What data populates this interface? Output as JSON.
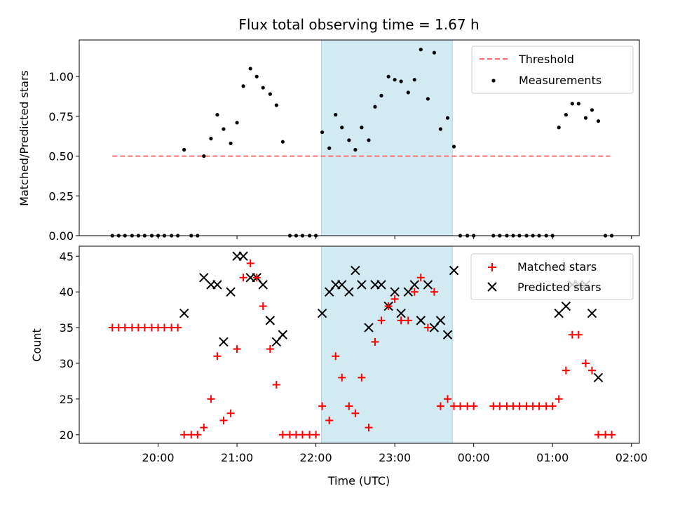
{
  "chart_data": [
    {
      "type": "scatter",
      "title": "Flux total observing time = 1.67 h",
      "xlabel": "",
      "ylabel": "Matched/Predicted stars",
      "ylim": [
        0,
        1.23
      ],
      "yticks": [
        0.0,
        0.25,
        0.5,
        0.75,
        1.0
      ],
      "ytick_labels": [
        "0.00",
        "0.25",
        "0.50",
        "0.75",
        "1.00"
      ],
      "x_unit": "hours since 00:00 UTC of first day (times after midnight > 24)",
      "xlim": [
        19.0,
        26.1
      ],
      "highlight_span": {
        "from": 22.07,
        "to": 23.73,
        "color": "#add8e6"
      },
      "legend": {
        "placement": "top-right",
        "entries": [
          "Threshold",
          "Measurements"
        ]
      },
      "threshold": {
        "name": "Threshold",
        "y": 0.5,
        "x_from": 19.42,
        "x_to": 25.73,
        "color": "#ff7070"
      },
      "series": [
        {
          "name": "Measurements",
          "color": "#000000",
          "points": [
            [
              19.42,
              0
            ],
            [
              19.5,
              0
            ],
            [
              19.58,
              0
            ],
            [
              19.67,
              0
            ],
            [
              19.75,
              0
            ],
            [
              19.83,
              0
            ],
            [
              19.92,
              0
            ],
            [
              20.0,
              0
            ],
            [
              20.08,
              0
            ],
            [
              20.17,
              0
            ],
            [
              20.25,
              0
            ],
            [
              20.33,
              0.54
            ],
            [
              20.42,
              0
            ],
            [
              20.5,
              0
            ],
            [
              20.58,
              0.5
            ],
            [
              20.67,
              0.61
            ],
            [
              20.75,
              0.76
            ],
            [
              20.83,
              0.67
            ],
            [
              20.92,
              0.58
            ],
            [
              21.0,
              0.71
            ],
            [
              21.08,
              0.94
            ],
            [
              21.17,
              1.05
            ],
            [
              21.25,
              1.0
            ],
            [
              21.33,
              0.93
            ],
            [
              21.42,
              0.89
            ],
            [
              21.5,
              0.82
            ],
            [
              21.58,
              0.59
            ],
            [
              21.67,
              0
            ],
            [
              21.75,
              0
            ],
            [
              21.83,
              0
            ],
            [
              21.92,
              0
            ],
            [
              22.0,
              0
            ],
            [
              22.08,
              0.65
            ],
            [
              22.17,
              0.55
            ],
            [
              22.25,
              0.76
            ],
            [
              22.33,
              0.68
            ],
            [
              22.42,
              0.6
            ],
            [
              22.5,
              0.54
            ],
            [
              22.58,
              0.68
            ],
            [
              22.67,
              0.6
            ],
            [
              22.75,
              0.81
            ],
            [
              22.83,
              0.88
            ],
            [
              22.92,
              1.0
            ],
            [
              23.0,
              0.98
            ],
            [
              23.08,
              0.97
            ],
            [
              23.17,
              0.9
            ],
            [
              23.25,
              0.98
            ],
            [
              23.33,
              1.17
            ],
            [
              23.42,
              0.86
            ],
            [
              23.5,
              1.15
            ],
            [
              23.58,
              0.67
            ],
            [
              23.67,
              0.74
            ],
            [
              23.75,
              0.56
            ],
            [
              23.83,
              0
            ],
            [
              23.92,
              0
            ],
            [
              24.0,
              0
            ],
            [
              24.25,
              0
            ],
            [
              24.33,
              0
            ],
            [
              24.42,
              0
            ],
            [
              24.5,
              0
            ],
            [
              24.58,
              0
            ],
            [
              24.67,
              0
            ],
            [
              24.75,
              0
            ],
            [
              24.83,
              0
            ],
            [
              24.92,
              0
            ],
            [
              25.0,
              0
            ],
            [
              25.08,
              0.68
            ],
            [
              25.17,
              0.76
            ],
            [
              25.25,
              0.83
            ],
            [
              25.33,
              0.83
            ],
            [
              25.42,
              0.74
            ],
            [
              25.5,
              0.79
            ],
            [
              25.58,
              0.72
            ],
            [
              25.67,
              0
            ],
            [
              25.75,
              0
            ]
          ]
        }
      ]
    },
    {
      "type": "scatter",
      "title": "",
      "xlabel": "Time (UTC)",
      "ylabel": "Count",
      "ylim": [
        18.8,
        46.4
      ],
      "yticks": [
        20,
        25,
        30,
        35,
        40,
        45
      ],
      "ytick_labels": [
        "20",
        "25",
        "30",
        "35",
        "40",
        "45"
      ],
      "xlim": [
        19.0,
        26.1
      ],
      "xticks": [
        20,
        21,
        22,
        23,
        24,
        25,
        26
      ],
      "xtick_labels": [
        "20:00",
        "21:00",
        "22:00",
        "23:00",
        "00:00",
        "01:00",
        "02:00"
      ],
      "highlight_span": {
        "from": 22.07,
        "to": 23.73,
        "color": "#add8e6"
      },
      "legend": {
        "placement": "top-right",
        "entries": [
          "Matched stars",
          "Predicted stars"
        ]
      },
      "series": [
        {
          "name": "Matched stars",
          "marker": "+",
          "color": "#ff0000",
          "points": [
            [
              19.42,
              35
            ],
            [
              19.5,
              35
            ],
            [
              19.58,
              35
            ],
            [
              19.67,
              35
            ],
            [
              19.75,
              35
            ],
            [
              19.83,
              35
            ],
            [
              19.92,
              35
            ],
            [
              20.0,
              35
            ],
            [
              20.08,
              35
            ],
            [
              20.17,
              35
            ],
            [
              20.25,
              35
            ],
            [
              20.33,
              20
            ],
            [
              20.42,
              20
            ],
            [
              20.5,
              20
            ],
            [
              20.58,
              21
            ],
            [
              20.67,
              25
            ],
            [
              20.75,
              31
            ],
            [
              20.83,
              22
            ],
            [
              20.92,
              23
            ],
            [
              21.0,
              32
            ],
            [
              21.08,
              42
            ],
            [
              21.17,
              44
            ],
            [
              21.25,
              42
            ],
            [
              21.33,
              38
            ],
            [
              21.42,
              32
            ],
            [
              21.5,
              27
            ],
            [
              21.58,
              20
            ],
            [
              21.67,
              20
            ],
            [
              21.75,
              20
            ],
            [
              21.83,
              20
            ],
            [
              21.92,
              20
            ],
            [
              22.0,
              20
            ],
            [
              22.08,
              24
            ],
            [
              22.17,
              22
            ],
            [
              22.25,
              31
            ],
            [
              22.33,
              28
            ],
            [
              22.42,
              24
            ],
            [
              22.5,
              23
            ],
            [
              22.58,
              28
            ],
            [
              22.67,
              21
            ],
            [
              22.75,
              33
            ],
            [
              22.83,
              36
            ],
            [
              22.92,
              38
            ],
            [
              23.0,
              39
            ],
            [
              23.08,
              36
            ],
            [
              23.17,
              36
            ],
            [
              23.25,
              40
            ],
            [
              23.33,
              42
            ],
            [
              23.42,
              35
            ],
            [
              23.5,
              40
            ],
            [
              23.58,
              24
            ],
            [
              23.67,
              25
            ],
            [
              23.75,
              24
            ],
            [
              23.83,
              24
            ],
            [
              23.92,
              24
            ],
            [
              24.0,
              24
            ],
            [
              24.25,
              24
            ],
            [
              24.33,
              24
            ],
            [
              24.42,
              24
            ],
            [
              24.5,
              24
            ],
            [
              24.58,
              24
            ],
            [
              24.67,
              24
            ],
            [
              24.75,
              24
            ],
            [
              24.83,
              24
            ],
            [
              24.92,
              24
            ],
            [
              25.0,
              24
            ],
            [
              25.08,
              25
            ],
            [
              25.17,
              29
            ],
            [
              25.25,
              34
            ],
            [
              25.33,
              34
            ],
            [
              25.42,
              30
            ],
            [
              25.5,
              29
            ],
            [
              25.58,
              20
            ],
            [
              25.67,
              20
            ],
            [
              25.75,
              20
            ]
          ]
        },
        {
          "name": "Predicted stars",
          "marker": "x",
          "color": "#000000",
          "points": [
            [
              20.33,
              37
            ],
            [
              20.58,
              42
            ],
            [
              20.67,
              41
            ],
            [
              20.75,
              41
            ],
            [
              20.83,
              33
            ],
            [
              20.92,
              40
            ],
            [
              21.0,
              45
            ],
            [
              21.08,
              45
            ],
            [
              21.17,
              42
            ],
            [
              21.25,
              42
            ],
            [
              21.33,
              41
            ],
            [
              21.42,
              36
            ],
            [
              21.5,
              33
            ],
            [
              21.58,
              34
            ],
            [
              22.08,
              37
            ],
            [
              22.17,
              40
            ],
            [
              22.25,
              41
            ],
            [
              22.33,
              41
            ],
            [
              22.42,
              40
            ],
            [
              22.5,
              43
            ],
            [
              22.58,
              41
            ],
            [
              22.67,
              35
            ],
            [
              22.75,
              41
            ],
            [
              22.83,
              41
            ],
            [
              22.92,
              38
            ],
            [
              23.0,
              40
            ],
            [
              23.08,
              37
            ],
            [
              23.17,
              40
            ],
            [
              23.25,
              41
            ],
            [
              23.33,
              36
            ],
            [
              23.42,
              41
            ],
            [
              23.5,
              35
            ],
            [
              23.58,
              36
            ],
            [
              23.67,
              34
            ],
            [
              23.75,
              43
            ],
            [
              25.08,
              37
            ],
            [
              25.17,
              38
            ],
            [
              25.25,
              41
            ],
            [
              25.33,
              41
            ],
            [
              25.42,
              41
            ],
            [
              25.5,
              37
            ],
            [
              25.58,
              28
            ]
          ]
        }
      ]
    }
  ]
}
